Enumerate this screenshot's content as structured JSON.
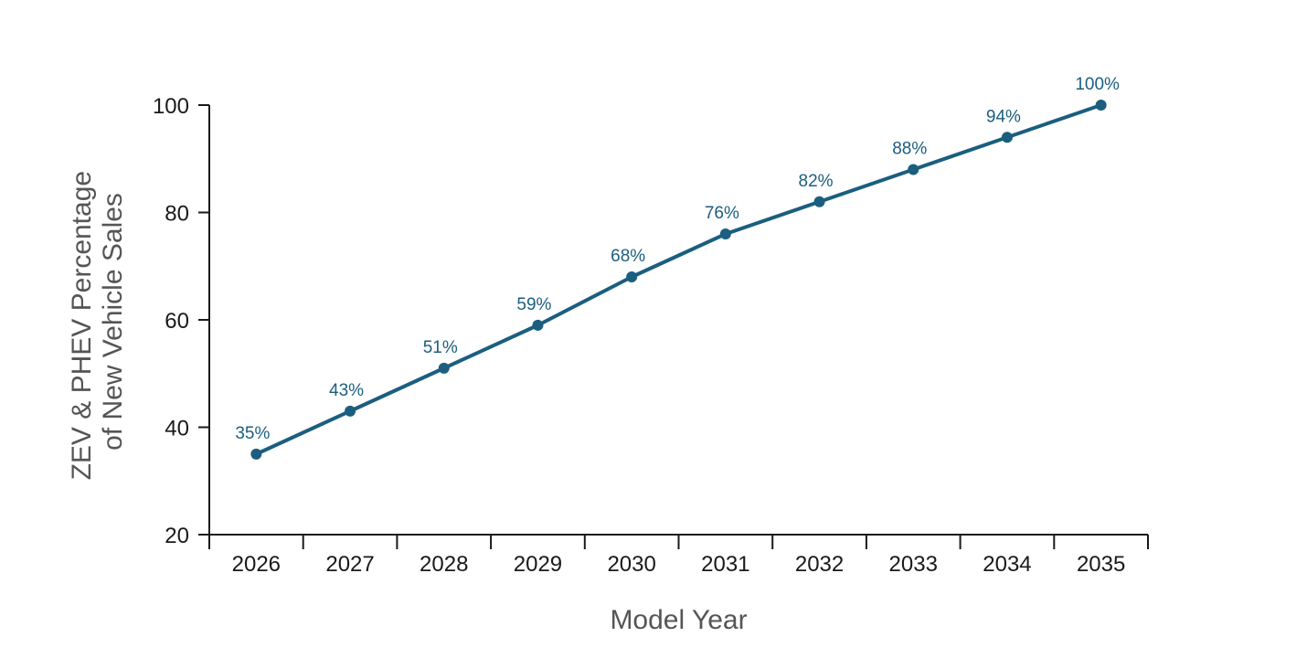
{
  "chart_data": {
    "type": "line",
    "title": "",
    "xlabel": "Model Year",
    "ylabel": "ZEV & PHEV Percentage of New Vehicle Sales",
    "ylabel_lines": [
      "ZEV & PHEV Percentage",
      "of New Vehicle Sales"
    ],
    "categories": [
      "2026",
      "2027",
      "2028",
      "2029",
      "2030",
      "2031",
      "2032",
      "2033",
      "2034",
      "2035"
    ],
    "series": [
      {
        "name": "ZEV & PHEV Percentage",
        "values": [
          35,
          43,
          51,
          59,
          68,
          76,
          82,
          88,
          94,
          100
        ],
        "labels": [
          "35%",
          "43%",
          "51%",
          "59%",
          "68%",
          "76%",
          "82%",
          "88%",
          "94%",
          "100%"
        ]
      }
    ],
    "ylim": [
      20,
      100
    ],
    "yticks": [
      20,
      40,
      60,
      80,
      100
    ],
    "grid": false,
    "legend": "none"
  },
  "colors": {
    "series": "#1b5e7f",
    "axis": "#1a1a1a",
    "axis_title": "#555555"
  }
}
